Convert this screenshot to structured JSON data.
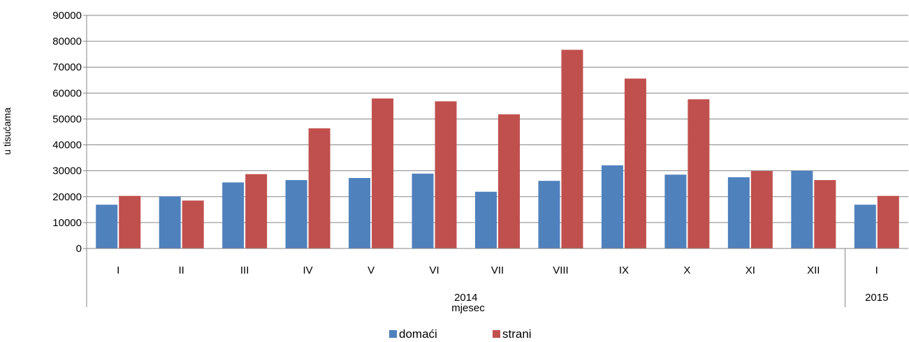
{
  "chart_data": {
    "type": "bar",
    "ylabel": "u tisućama",
    "xlabel": "mjesec",
    "ylim": [
      0,
      90000
    ],
    "yticks": [
      0,
      10000,
      20000,
      30000,
      40000,
      50000,
      60000,
      70000,
      80000,
      90000
    ],
    "grid": true,
    "legend_position": "bottom",
    "categories": [
      "I",
      "II",
      "III",
      "IV",
      "V",
      "VI",
      "VII",
      "VIII",
      "IX",
      "X",
      "XI",
      "XII",
      "I"
    ],
    "groups": [
      {
        "label": "2014",
        "count": 12
      },
      {
        "label": "2015",
        "count": 1
      }
    ],
    "series": [
      {
        "name": "domaći",
        "color": "#4F81BD",
        "values": [
          16900,
          20100,
          25500,
          26400,
          27200,
          28900,
          21900,
          26100,
          32100,
          28500,
          27500,
          30000,
          16900
        ]
      },
      {
        "name": "strani",
        "color": "#C0504D",
        "values": [
          20300,
          18500,
          28700,
          46400,
          57900,
          56800,
          51800,
          76700,
          65600,
          57600,
          29900,
          26400,
          20300
        ]
      }
    ]
  }
}
